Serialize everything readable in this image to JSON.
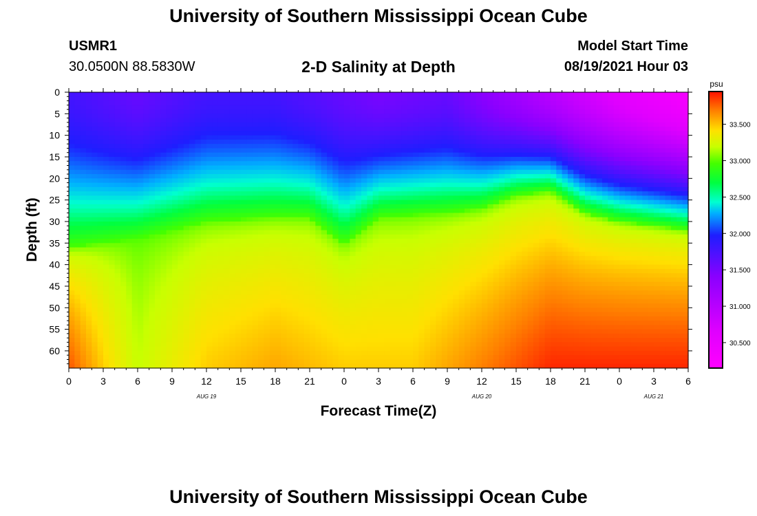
{
  "header": {
    "title": "University of Southern Mississippi Ocean Cube",
    "station_id": "USMR1",
    "station_coords": "30.0500N  88.5830W",
    "subtitle": "2-D Salinity at Depth",
    "model_start_label": "Model Start Time",
    "model_start_value": "08/19/2021 Hour 03"
  },
  "footer": {
    "title": "University of Southern Mississippi Ocean Cube"
  },
  "chart_data": {
    "type": "heatmap",
    "title": "2-D Salinity at Depth",
    "xlabel": "Forecast Time(Z)",
    "ylabel": "Depth (ft)",
    "x_start_hour": 0,
    "x_end_hour": 54,
    "x_tick_hours": [
      0,
      3,
      6,
      9,
      12,
      15,
      18,
      21,
      24,
      27,
      30,
      33,
      36,
      39,
      42,
      45,
      48,
      51,
      54
    ],
    "x_tick_labels": [
      "0",
      "3",
      "6",
      "9",
      "12",
      "15",
      "18",
      "21",
      "0",
      "3",
      "6",
      "9",
      "12",
      "15",
      "18",
      "21",
      "0",
      "3",
      "6"
    ],
    "date_labels": [
      {
        "hour": 12,
        "label": "AUG 19"
      },
      {
        "hour": 36,
        "label": "AUG 20"
      },
      {
        "hour": 51,
        "label": "AUG 21"
      }
    ],
    "ylim": [
      0,
      64
    ],
    "y_ticks": [
      0,
      5,
      10,
      15,
      20,
      25,
      30,
      35,
      40,
      45,
      50,
      55,
      60
    ],
    "colorbar": {
      "unit": "psu",
      "min": 30.15,
      "max": 33.95,
      "ticks": [
        30.5,
        31.0,
        31.5,
        32.0,
        32.5,
        33.0,
        33.5
      ],
      "tick_labels": [
        "30.500",
        "31.000",
        "31.500",
        "32.000",
        "32.500",
        "33.000",
        "33.500"
      ]
    },
    "surface_salinity": [
      {
        "hour": 0,
        "value": 31.8
      },
      {
        "hour": 6,
        "value": 31.6
      },
      {
        "hour": 12,
        "value": 31.8
      },
      {
        "hour": 18,
        "value": 31.8
      },
      {
        "hour": 24,
        "value": 31.6
      },
      {
        "hour": 27,
        "value": 31.5
      },
      {
        "hour": 33,
        "value": 31.6
      },
      {
        "hour": 36,
        "value": 31.4
      },
      {
        "hour": 42,
        "value": 31.0
      },
      {
        "hour": 48,
        "value": 30.6
      },
      {
        "hour": 54,
        "value": 30.3
      }
    ],
    "isohaline_33_depth_ft": [
      {
        "hour": 0,
        "depth": 36
      },
      {
        "hour": 6,
        "depth": 34
      },
      {
        "hour": 12,
        "depth": 30
      },
      {
        "hour": 18,
        "depth": 29
      },
      {
        "hour": 21,
        "depth": 29
      },
      {
        "hour": 24,
        "depth": 35
      },
      {
        "hour": 27,
        "depth": 29
      },
      {
        "hour": 33,
        "depth": 28
      },
      {
        "hour": 36,
        "depth": 27
      },
      {
        "hour": 39,
        "depth": 24
      },
      {
        "hour": 42,
        "depth": 23
      },
      {
        "hour": 45,
        "depth": 28
      },
      {
        "hour": 48,
        "depth": 30
      },
      {
        "hour": 54,
        "depth": 32
      }
    ],
    "bottom_salinity": [
      {
        "hour": 0,
        "value": 33.8
      },
      {
        "hour": 6,
        "value": 33.2
      },
      {
        "hour": 12,
        "value": 33.5
      },
      {
        "hour": 18,
        "value": 33.6
      },
      {
        "hour": 24,
        "value": 33.5
      },
      {
        "hour": 30,
        "value": 33.5
      },
      {
        "hour": 36,
        "value": 33.7
      },
      {
        "hour": 42,
        "value": 33.9
      },
      {
        "hour": 48,
        "value": 33.9
      },
      {
        "hour": 54,
        "value": 33.9
      }
    ]
  }
}
